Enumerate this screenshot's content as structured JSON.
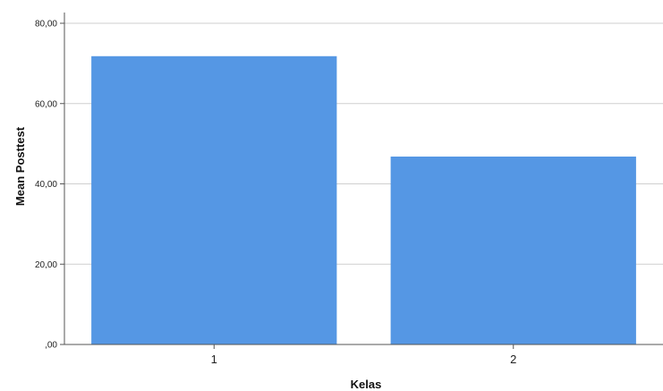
{
  "chart_data": {
    "type": "bar",
    "categories": [
      "1",
      "2"
    ],
    "values": [
      71.8,
      46.8
    ],
    "title": "",
    "xlabel": "Kelas",
    "ylabel": "Mean Posttest",
    "ylim": [
      0,
      80
    ],
    "yticks": [
      ",00",
      "20,00",
      "40,00",
      "60,00",
      "80,00"
    ],
    "grid": true,
    "bar_color": "#5597e4",
    "legend": "none"
  }
}
